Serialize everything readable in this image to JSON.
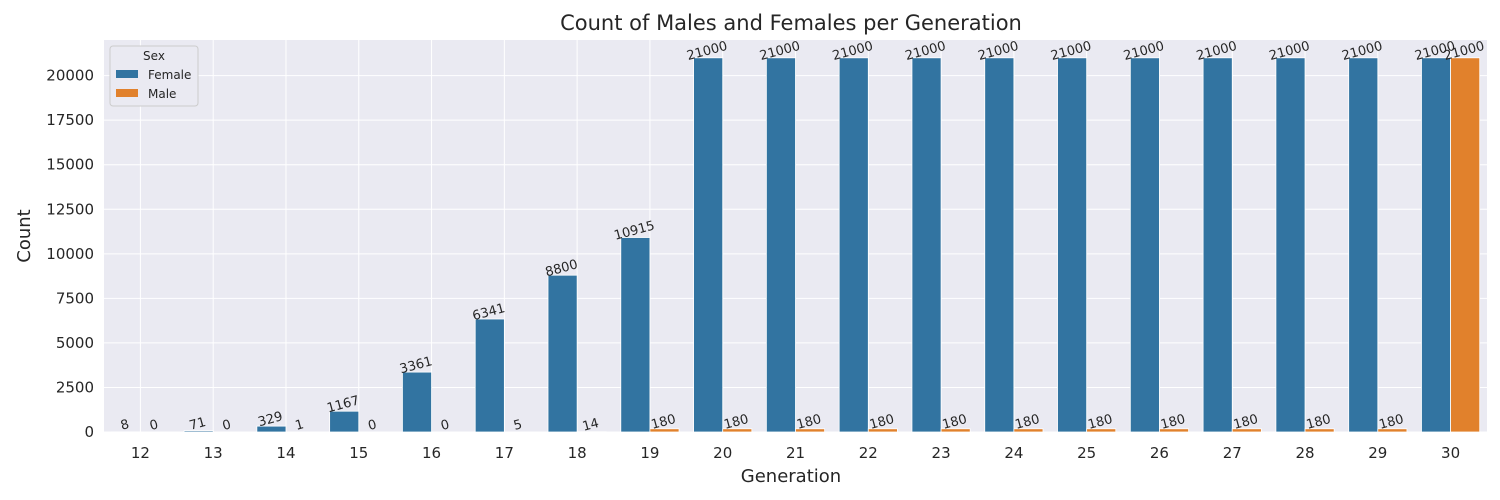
{
  "chart_data": {
    "type": "bar",
    "title": "Count of Males and Females per Generation",
    "xlabel": "Generation",
    "ylabel": "Count",
    "categories": [
      "12",
      "13",
      "14",
      "15",
      "16",
      "17",
      "18",
      "19",
      "20",
      "21",
      "22",
      "23",
      "24",
      "25",
      "26",
      "27",
      "28",
      "29",
      "30"
    ],
    "series": [
      {
        "name": "Female",
        "color": "#3274a1",
        "values": [
          8,
          71,
          329,
          1167,
          3361,
          6341,
          8800,
          10915,
          21000,
          21000,
          21000,
          21000,
          21000,
          21000,
          21000,
          21000,
          21000,
          21000,
          21000
        ]
      },
      {
        "name": "Male",
        "color": "#e1812c",
        "values": [
          0,
          0,
          1,
          0,
          0,
          5,
          14,
          180,
          180,
          180,
          180,
          180,
          180,
          180,
          180,
          180,
          180,
          180,
          21000
        ]
      }
    ],
    "ylim": [
      0,
      22000
    ],
    "yticks": [
      0,
      2500,
      5000,
      7500,
      10000,
      12500,
      15000,
      17500,
      20000
    ],
    "grid": true,
    "legend": {
      "title": "Sex",
      "placement": "top-left"
    }
  }
}
